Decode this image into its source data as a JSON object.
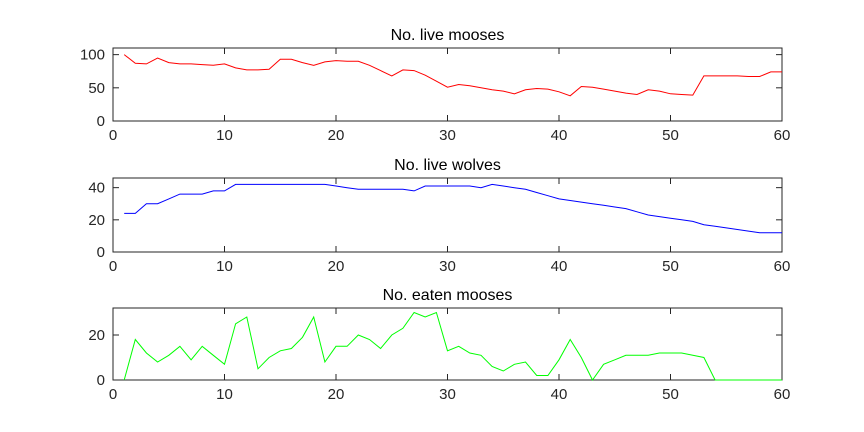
{
  "chart_data": [
    {
      "type": "line",
      "title": "No. live mooses",
      "xlabel": "",
      "ylabel": "",
      "xlim": [
        0,
        60
      ],
      "ylim": [
        0,
        110
      ],
      "xticks": [
        0,
        10,
        20,
        30,
        40,
        50,
        60
      ],
      "yticks": [
        0,
        50,
        100
      ],
      "color": "#ff0000",
      "series": [
        {
          "x": [
            1,
            2,
            3,
            4,
            5,
            6,
            7,
            8,
            9,
            10,
            11,
            12,
            13,
            14,
            15,
            16,
            17,
            18,
            19,
            20,
            21,
            22,
            23,
            24,
            25,
            26,
            27,
            28,
            29,
            30,
            31,
            32,
            33,
            34,
            35,
            36,
            37,
            38,
            39,
            40,
            41,
            42,
            43,
            44,
            45,
            46,
            47,
            48,
            49,
            50,
            51,
            52,
            53,
            54,
            55,
            56,
            57,
            58,
            59,
            60
          ],
          "y": [
            100,
            87,
            86,
            95,
            88,
            86,
            86,
            85,
            84,
            86,
            80,
            77,
            77,
            78,
            93,
            93,
            88,
            84,
            89,
            91,
            90,
            90,
            84,
            76,
            68,
            77,
            76,
            69,
            60,
            51,
            55,
            53,
            50,
            47,
            45,
            41,
            47,
            49,
            48,
            44,
            38,
            52,
            51,
            48,
            45,
            42,
            40,
            47,
            45,
            41,
            40,
            39,
            68,
            68,
            68,
            68,
            67,
            67,
            74,
            74
          ]
        }
      ]
    },
    {
      "type": "line",
      "title": "No. live wolves",
      "xlabel": "",
      "ylabel": "",
      "xlim": [
        0,
        60
      ],
      "ylim": [
        0,
        46
      ],
      "xticks": [
        0,
        10,
        20,
        30,
        40,
        50,
        60
      ],
      "yticks": [
        0,
        20,
        40
      ],
      "color": "#0000ff",
      "series": [
        {
          "x": [
            1,
            2,
            3,
            4,
            5,
            6,
            7,
            8,
            9,
            10,
            11,
            12,
            13,
            14,
            15,
            16,
            17,
            18,
            19,
            20,
            21,
            22,
            23,
            24,
            25,
            26,
            27,
            28,
            29,
            30,
            31,
            32,
            33,
            34,
            35,
            36,
            37,
            38,
            39,
            40,
            41,
            42,
            43,
            44,
            45,
            46,
            47,
            48,
            49,
            50,
            51,
            52,
            53,
            54,
            55,
            56,
            57,
            58,
            59,
            60
          ],
          "y": [
            24,
            24,
            30,
            30,
            33,
            36,
            36,
            36,
            38,
            38,
            42,
            42,
            42,
            42,
            42,
            42,
            42,
            42,
            42,
            41,
            40,
            39,
            39,
            39,
            39,
            39,
            38,
            41,
            41,
            41,
            41,
            41,
            40,
            42,
            41,
            40,
            39,
            37,
            35,
            33,
            32,
            31,
            30,
            29,
            28,
            27,
            25,
            23,
            22,
            21,
            20,
            19,
            17,
            16,
            15,
            14,
            13,
            12,
            12,
            12
          ]
        }
      ]
    },
    {
      "type": "line",
      "title": "No. eaten mooses",
      "xlabel": "",
      "ylabel": "",
      "xlim": [
        0,
        60
      ],
      "ylim": [
        0,
        32
      ],
      "xticks": [
        0,
        10,
        20,
        30,
        40,
        50,
        60
      ],
      "yticks": [
        0,
        20
      ],
      "color": "#00ff00",
      "series": [
        {
          "x": [
            1,
            2,
            3,
            4,
            5,
            6,
            7,
            8,
            9,
            10,
            11,
            12,
            13,
            14,
            15,
            16,
            17,
            18,
            19,
            20,
            21,
            22,
            23,
            24,
            25,
            26,
            27,
            28,
            29,
            30,
            31,
            32,
            33,
            34,
            35,
            36,
            37,
            38,
            39,
            40,
            41,
            42,
            43,
            44,
            45,
            46,
            47,
            48,
            49,
            50,
            51,
            52,
            53,
            54,
            55,
            56,
            57,
            58,
            59,
            60
          ],
          "y": [
            0,
            18,
            12,
            8,
            11,
            15,
            9,
            15,
            11,
            7,
            25,
            28,
            5,
            10,
            13,
            14,
            19,
            28,
            8,
            15,
            15,
            20,
            18,
            14,
            20,
            23,
            30,
            28,
            30,
            13,
            15,
            12,
            11,
            6,
            4,
            7,
            8,
            2,
            2,
            9,
            18,
            10,
            0,
            7,
            9,
            11,
            11,
            11,
            12,
            12,
            12,
            11,
            10,
            0,
            0,
            0,
            0,
            0,
            0,
            0
          ]
        }
      ]
    }
  ]
}
